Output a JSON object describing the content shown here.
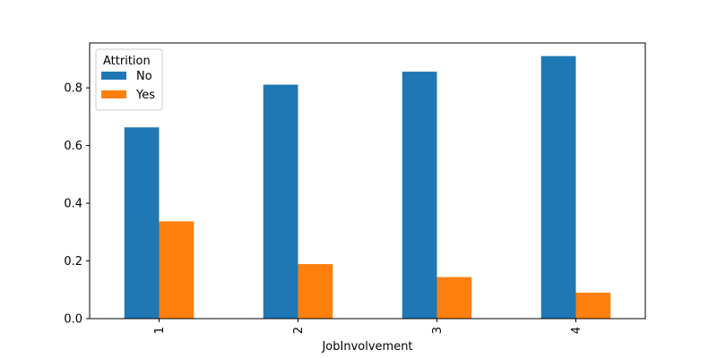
{
  "chart_data": {
    "type": "bar",
    "title": "",
    "xlabel": "JobInvolvement",
    "ylabel": "",
    "categories": [
      "1",
      "2",
      "3",
      "4"
    ],
    "series": [
      {
        "name": "No",
        "values": [
          0.663,
          0.811,
          0.856,
          0.91
        ],
        "color": "#1f77b4"
      },
      {
        "name": "Yes",
        "values": [
          0.337,
          0.189,
          0.144,
          0.09
        ],
        "color": "#ff7f0e"
      }
    ],
    "ylim": [
      0,
      0.9555
    ],
    "yticks": [
      0.0,
      0.2,
      0.4,
      0.6,
      0.8
    ],
    "ytick_labels": [
      "0.0",
      "0.2",
      "0.4",
      "0.6",
      "0.8"
    ],
    "legend": {
      "title": "Attrition",
      "placement": "top-left"
    },
    "grid": false
  }
}
